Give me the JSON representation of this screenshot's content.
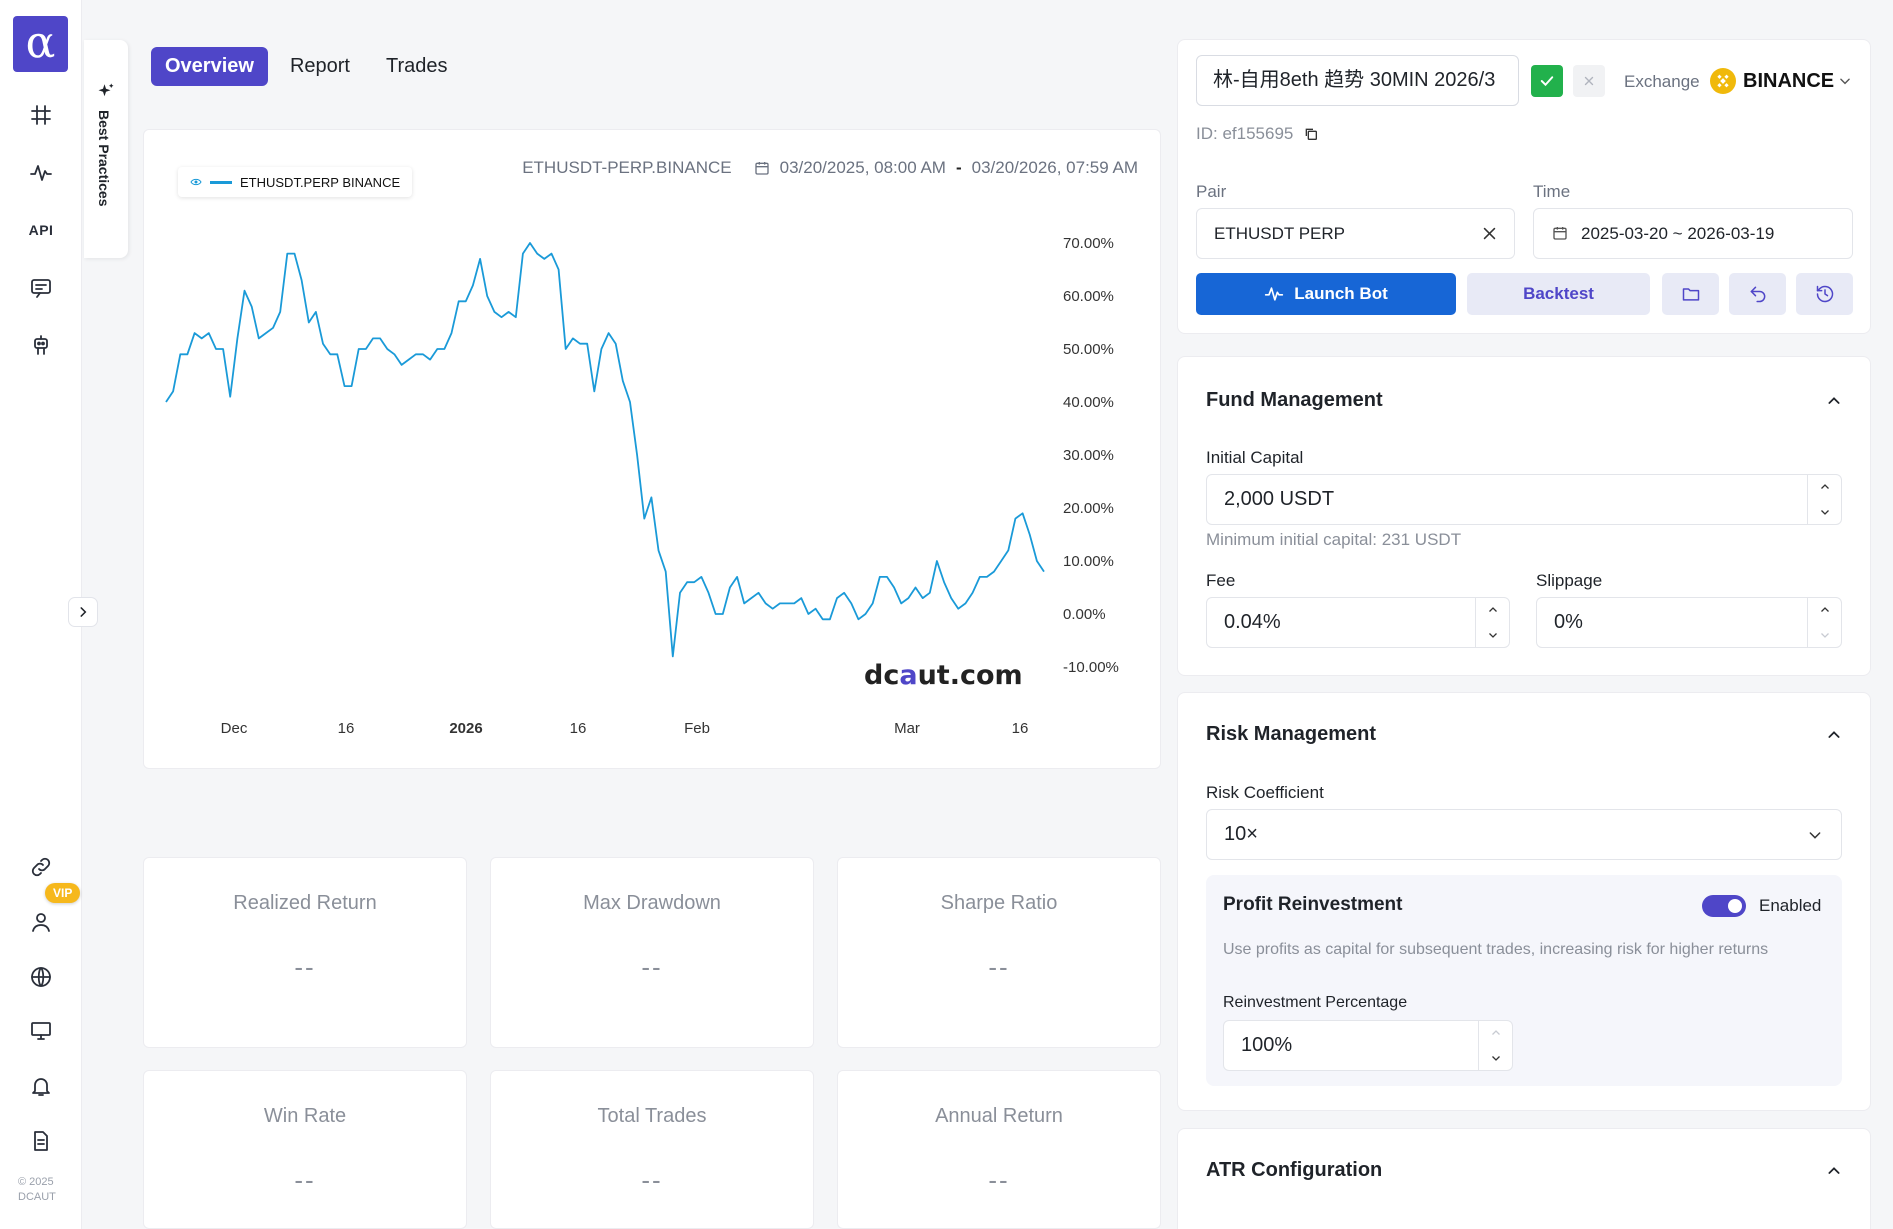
{
  "app": {
    "logo_glyph": "α",
    "copyright_line1": "© 2025",
    "copyright_line2": "DCAUT",
    "vip_badge": "VIP",
    "api_label": "API"
  },
  "best_practices": {
    "label": "Best Practices"
  },
  "tabs": [
    {
      "label": "Overview",
      "active": true
    },
    {
      "label": "Report",
      "active": false
    },
    {
      "label": "Trades",
      "active": false
    }
  ],
  "chart": {
    "legend": "ETHUSDT.PERP BINANCE",
    "symbol": "ETHUSDT-PERP.BINANCE",
    "start": "03/20/2025, 08:00 AM",
    "separator": "-",
    "end": "03/20/2026, 07:59 AM",
    "watermark_pre": "dc",
    "watermark_a": "a",
    "watermark_post": "ut.com"
  },
  "chart_data": {
    "type": "line",
    "series": [
      {
        "name": "ETHUSDT.PERP BINANCE",
        "color": "#1a9ad8",
        "values": [
          40,
          42,
          49,
          49,
          53,
          52,
          53,
          50,
          50,
          41,
          52,
          61,
          58,
          52,
          53,
          54,
          57,
          68,
          68,
          63,
          55,
          57,
          51,
          49,
          49,
          43,
          43,
          50,
          50,
          52,
          52,
          50,
          49,
          47,
          48,
          49,
          49,
          48,
          50,
          50,
          53,
          59,
          59,
          62,
          67,
          60,
          57,
          56,
          57,
          56,
          68,
          70,
          68,
          67,
          68,
          65,
          50,
          52,
          51,
          51,
          42,
          50,
          53,
          51,
          44,
          40,
          30,
          18,
          22,
          12,
          8,
          -8,
          4,
          6,
          6,
          7,
          4,
          0,
          0,
          5,
          7,
          2,
          3,
          4,
          2,
          1,
          2,
          2,
          2,
          3,
          0,
          1,
          -1,
          -1,
          3,
          4,
          2,
          -1,
          0,
          2,
          7,
          7,
          5,
          2,
          3,
          5,
          3,
          4,
          10,
          6,
          3,
          1,
          2,
          4,
          7,
          7,
          8,
          10,
          12,
          18,
          19,
          15,
          10,
          8
        ]
      }
    ],
    "x_ticks": [
      "Dec",
      "16",
      "2026",
      "16",
      "Feb",
      "Mar",
      "16"
    ],
    "y_ticks": [
      "70.00%",
      "60.00%",
      "50.00%",
      "40.00%",
      "30.00%",
      "20.00%",
      "10.00%",
      "0.00%",
      "-10.00%"
    ],
    "ylim": [
      -10,
      70
    ],
    "grid": false,
    "legend_position": "top-left"
  },
  "stats": [
    {
      "label": "Realized Return",
      "value": "--"
    },
    {
      "label": "Max Drawdown",
      "value": "--"
    },
    {
      "label": "Sharpe Ratio",
      "value": "--"
    },
    {
      "label": "Win Rate",
      "value": "--"
    },
    {
      "label": "Total Trades",
      "value": "--"
    },
    {
      "label": "Annual Return",
      "value": "--"
    }
  ],
  "bot": {
    "name": "林-自用8eth 趋势 30MIN 2026/3",
    "exchange_label": "Exchange",
    "exchange": "BINANCE",
    "id_line": "ID: ef155695",
    "pair_label": "Pair",
    "pair": "ETHUSDT PERP",
    "time_label": "Time",
    "time": "2025-03-20 ~ 2026-03-19",
    "launch_label": "Launch Bot",
    "backtest_label": "Backtest"
  },
  "fund": {
    "title": "Fund Management",
    "initial_label": "Initial Capital",
    "initial_value": "2,000 USDT",
    "min_hint": "Minimum initial capital: 231 USDT",
    "fee_label": "Fee",
    "fee_value": "0.04%",
    "slip_label": "Slippage",
    "slip_value": "0%"
  },
  "risk": {
    "title": "Risk Management",
    "coef_label": "Risk Coefficient",
    "coef_value": "10×",
    "reinvest_title": "Profit Reinvestment",
    "reinvest_state": "Enabled",
    "reinvest_desc": "Use profits as capital for subsequent trades, increasing risk for higher returns",
    "pct_label": "Reinvestment Percentage",
    "pct_value": "100%"
  },
  "atr": {
    "title": "ATR Configuration"
  },
  "colors": {
    "brand": "#4f46c8",
    "launch": "#1766d6",
    "line": "#1a9ad8",
    "success": "#22b14c",
    "binance": "#f0b90b"
  }
}
